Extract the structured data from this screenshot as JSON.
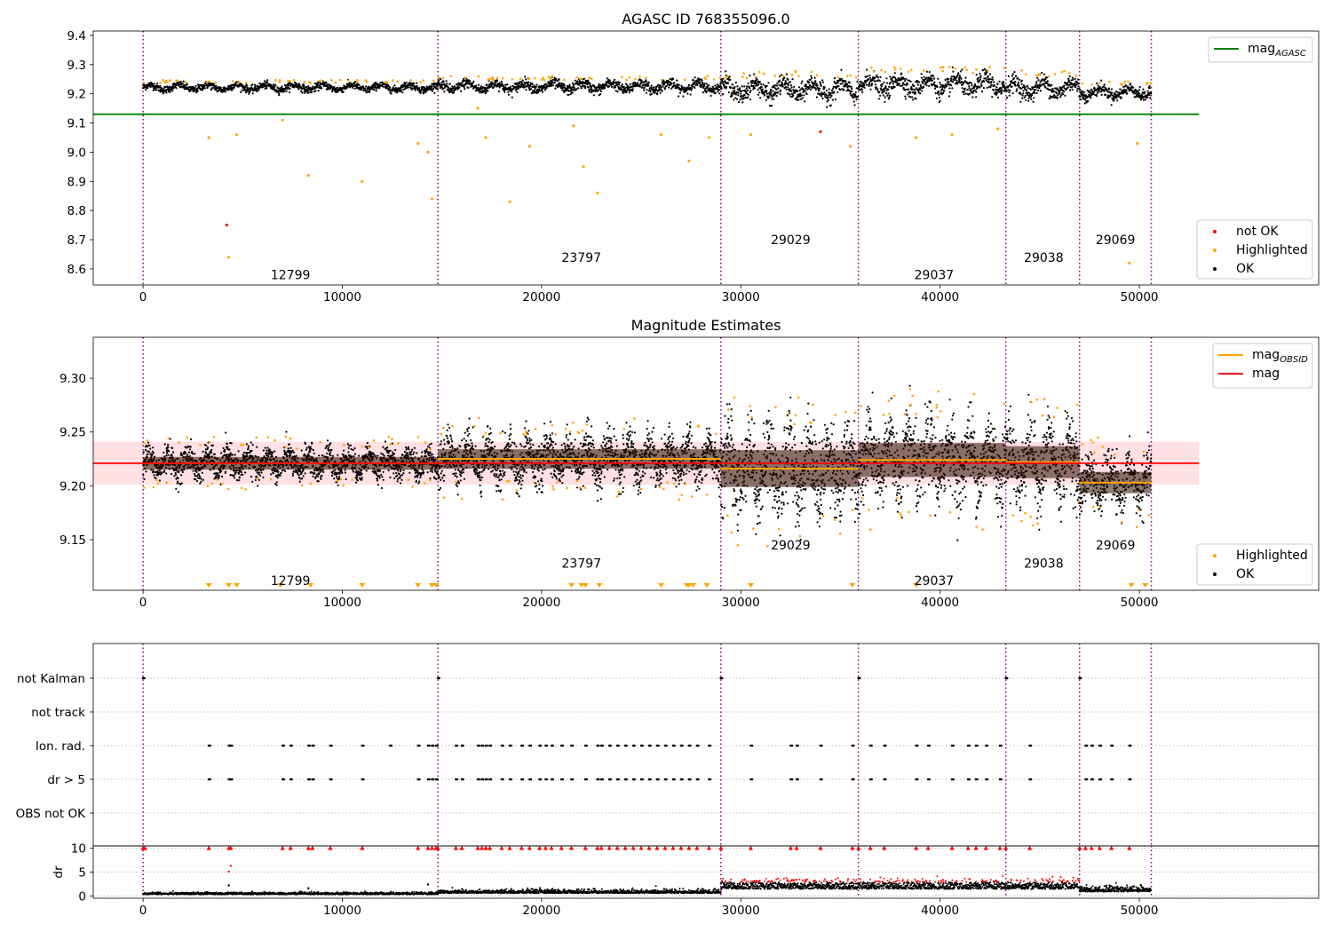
{
  "figure": {
    "obs_boundaries": [
      0,
      14800,
      29000,
      35900,
      43300,
      47000,
      50600
    ],
    "colors": {
      "ok": "#000000",
      "highlighted": "#ffa500",
      "not_ok": "#ff0000",
      "agasc_line": "#008000",
      "mag_line": "#ff0000",
      "obsid_line": "#ffa500",
      "boundary": "#800080",
      "band": "#ffdde0"
    }
  },
  "chart_data": [
    {
      "type": "scatter",
      "title": "AGASC ID 768355096.0",
      "xlabel": "",
      "ylabel": "",
      "xlim": [
        -2500,
        59000
      ],
      "ylim": [
        8.545,
        9.415
      ],
      "xticks": [
        "0",
        "10000",
        "20000",
        "30000",
        "40000",
        "50000"
      ],
      "yticks": [
        "8.6",
        "8.7",
        "8.8",
        "8.9",
        "9.0",
        "9.1",
        "9.2",
        "9.3",
        "9.4"
      ],
      "legend_top": [
        {
          "label": "mag",
          "sub": "AGASC",
          "color": "#008000"
        }
      ],
      "legend_bottom": [
        {
          "label": "not OK",
          "color": "#ff0000"
        },
        {
          "label": "Highlighted",
          "color": "#ffa500"
        },
        {
          "label": "OK",
          "color": "#000000"
        }
      ],
      "mag_agasc": 9.13,
      "obs_labels": [
        {
          "text": "12799",
          "x": 7400,
          "y": 8.58
        },
        {
          "text": "23797",
          "x": 22000,
          "y": 8.64
        },
        {
          "text": "29029",
          "x": 32500,
          "y": 8.7
        },
        {
          "text": "29037",
          "x": 39700,
          "y": 8.58
        },
        {
          "text": "29038",
          "x": 45200,
          "y": 8.64
        },
        {
          "text": "29069",
          "x": 48800,
          "y": 8.7
        }
      ],
      "segments": [
        {
          "x0": 0,
          "x1": 14800,
          "mean": 9.222,
          "spread": 0.014
        },
        {
          "x0": 14800,
          "x1": 29000,
          "mean": 9.225,
          "spread": 0.02
        },
        {
          "x0": 29000,
          "x1": 35900,
          "mean": 9.215,
          "spread": 0.035
        },
        {
          "x0": 35900,
          "x1": 43300,
          "mean": 9.23,
          "spread": 0.036
        },
        {
          "x0": 43300,
          "x1": 47000,
          "mean": 9.22,
          "spread": 0.034
        },
        {
          "x0": 47000,
          "x1": 50600,
          "mean": 9.205,
          "spread": 0.022
        }
      ],
      "outliers": [
        {
          "x": 4200,
          "y": 8.75,
          "status": "not_ok"
        },
        {
          "x": 34000,
          "y": 9.07,
          "status": "not_ok"
        },
        {
          "x": 4300,
          "y": 8.64,
          "status": "highlighted"
        },
        {
          "x": 3300,
          "y": 9.05,
          "status": "highlighted"
        },
        {
          "x": 4700,
          "y": 9.06,
          "status": "highlighted"
        },
        {
          "x": 8300,
          "y": 8.92,
          "status": "highlighted"
        },
        {
          "x": 11000,
          "y": 8.9,
          "status": "highlighted"
        },
        {
          "x": 13800,
          "y": 9.03,
          "status": "highlighted"
        },
        {
          "x": 14300,
          "y": 9.0,
          "status": "highlighted"
        },
        {
          "x": 14500,
          "y": 8.84,
          "status": "highlighted"
        },
        {
          "x": 18400,
          "y": 8.83,
          "status": "highlighted"
        },
        {
          "x": 19400,
          "y": 9.02,
          "status": "highlighted"
        },
        {
          "x": 22100,
          "y": 8.95,
          "status": "highlighted"
        },
        {
          "x": 22800,
          "y": 8.86,
          "status": "highlighted"
        },
        {
          "x": 21600,
          "y": 9.09,
          "status": "highlighted"
        },
        {
          "x": 27400,
          "y": 8.97,
          "status": "highlighted"
        },
        {
          "x": 28400,
          "y": 9.05,
          "status": "highlighted"
        },
        {
          "x": 35500,
          "y": 9.02,
          "status": "highlighted"
        },
        {
          "x": 38800,
          "y": 9.05,
          "status": "highlighted"
        },
        {
          "x": 40600,
          "y": 9.06,
          "status": "highlighted"
        },
        {
          "x": 42900,
          "y": 9.08,
          "status": "highlighted"
        },
        {
          "x": 49500,
          "y": 8.62,
          "status": "highlighted"
        },
        {
          "x": 49900,
          "y": 9.03,
          "status": "highlighted"
        },
        {
          "x": 7000,
          "y": 9.11,
          "status": "highlighted"
        },
        {
          "x": 16800,
          "y": 9.15,
          "status": "highlighted"
        },
        {
          "x": 30500,
          "y": 9.06,
          "status": "highlighted"
        },
        {
          "x": 17200,
          "y": 9.05,
          "status": "highlighted"
        },
        {
          "x": 26000,
          "y": 9.06,
          "status": "highlighted"
        }
      ]
    },
    {
      "type": "scatter",
      "title": "Magnitude Estimates",
      "xlabel": "",
      "ylabel": "",
      "xlim": [
        -2500,
        59000
      ],
      "ylim": [
        9.103,
        9.338
      ],
      "xticks": [
        "0",
        "10000",
        "20000",
        "30000",
        "40000",
        "50000"
      ],
      "yticks": [
        "9.15",
        "9.20",
        "9.25",
        "9.30"
      ],
      "legend_top": [
        {
          "label": "mag",
          "sub": "OBSID",
          "color": "#ffa500"
        },
        {
          "label": "mag",
          "sub": "",
          "color": "#ff0000"
        }
      ],
      "legend_bottom": [
        {
          "label": "Highlighted",
          "color": "#ffa500"
        },
        {
          "label": "OK",
          "color": "#000000"
        }
      ],
      "mag": 9.221,
      "band": [
        9.201,
        9.241
      ],
      "obsid_means": [
        {
          "x0": 0,
          "x1": 14800,
          "mean": 9.221
        },
        {
          "x0": 14800,
          "x1": 29000,
          "mean": 9.225
        },
        {
          "x0": 29000,
          "x1": 35900,
          "mean": 9.216
        },
        {
          "x0": 35900,
          "x1": 43300,
          "mean": 9.224
        },
        {
          "x0": 43300,
          "x1": 47000,
          "mean": 9.222
        },
        {
          "x0": 47000,
          "x1": 50600,
          "mean": 9.203
        }
      ],
      "obs_labels": [
        {
          "text": "12799",
          "x": 7400,
          "y": 9.112
        },
        {
          "text": "23797",
          "x": 22000,
          "y": 9.128
        },
        {
          "text": "29029",
          "x": 32500,
          "y": 9.145
        },
        {
          "text": "29037",
          "x": 39700,
          "y": 9.112
        },
        {
          "text": "29038",
          "x": 45200,
          "y": 9.128
        },
        {
          "text": "29069",
          "x": 48800,
          "y": 9.145
        }
      ],
      "down_markers": [
        3300,
        4300,
        4700,
        6900,
        8400,
        11000,
        13800,
        14500,
        14700,
        21500,
        22000,
        22200,
        22900,
        26000,
        27300,
        27400,
        27600,
        28300,
        30500,
        35600,
        38800,
        49600,
        50300
      ]
    },
    {
      "type": "scatter",
      "title": "",
      "xlabel": "",
      "ylabel": "",
      "xlim": [
        -2500,
        59000
      ],
      "categories": [
        "not Kalman",
        "not track",
        "Ion. rad.",
        "dr > 5",
        "OBS not OK"
      ],
      "flag_events": [
        {
          "category": "not Kalman",
          "x": [
            0,
            14800,
            29000,
            35900,
            43300,
            47000
          ]
        },
        {
          "category": "not track",
          "x": []
        },
        {
          "category": "Ion. rad.",
          "x": [
            3300,
            4300,
            4400,
            7000,
            7400,
            8300,
            8500,
            9400,
            11000,
            12400,
            13800,
            14300,
            14500,
            14700,
            15700,
            16000,
            16800,
            17000,
            17200,
            17400,
            18000,
            18400,
            19000,
            19400,
            19900,
            20200,
            20500,
            21000,
            21500,
            22200,
            22800,
            23000,
            23400,
            23800,
            24200,
            24600,
            25000,
            25400,
            25800,
            26200,
            26600,
            27000,
            27400,
            27800,
            28400,
            30500,
            32500,
            32800,
            34000,
            35600,
            36500,
            37200,
            38800,
            39400,
            40600,
            41400,
            41800,
            42300,
            43000,
            44500,
            47300,
            47600,
            48000,
            48600,
            49500
          ]
        },
        {
          "category": "dr > 5",
          "x": [
            3300,
            4300,
            4400,
            7000,
            7400,
            8300,
            8500,
            9400,
            11000,
            13800,
            14300,
            14500,
            14700,
            15700,
            16000,
            16800,
            17000,
            17200,
            17400,
            18000,
            18400,
            19000,
            19400,
            19900,
            20200,
            20500,
            21000,
            21500,
            22200,
            22800,
            23000,
            23400,
            23800,
            24200,
            24600,
            25000,
            25400,
            25800,
            26200,
            26600,
            27000,
            27400,
            27800,
            28400,
            30500,
            32500,
            32800,
            34000,
            35600,
            36500,
            37200,
            38800,
            39400,
            40600,
            41400,
            41800,
            42300,
            43000,
            44500,
            47300,
            47600,
            48000,
            48600,
            49500
          ]
        },
        {
          "category": "OBS not OK",
          "x": []
        }
      ]
    },
    {
      "type": "scatter",
      "title": "",
      "xlabel": "",
      "ylabel": "dr",
      "xlim": [
        -2500,
        59000
      ],
      "ylim": [
        -0.5,
        10.5
      ],
      "xticks": [
        "0",
        "10000",
        "20000",
        "30000",
        "40000",
        "50000"
      ],
      "yticks": [
        "0",
        "5",
        "10"
      ],
      "segments": [
        {
          "x0": 0,
          "x1": 14800,
          "mean": 0.4
        },
        {
          "x0": 14800,
          "x1": 29000,
          "mean": 0.7
        },
        {
          "x0": 29000,
          "x1": 35900,
          "mean": 1.8
        },
        {
          "x0": 35900,
          "x1": 43300,
          "mean": 1.8
        },
        {
          "x0": 43300,
          "x1": 47000,
          "mean": 1.8
        },
        {
          "x0": 47000,
          "x1": 50600,
          "mean": 1.1
        }
      ],
      "clipped_x": [
        0,
        100,
        3300,
        4300,
        4400,
        7000,
        7400,
        8300,
        8500,
        9400,
        11000,
        13800,
        14300,
        14500,
        14700,
        14800,
        15700,
        16000,
        16800,
        17000,
        17200,
        17400,
        18000,
        18400,
        19000,
        19400,
        19900,
        20200,
        20500,
        21000,
        21500,
        22200,
        22800,
        23000,
        23400,
        23800,
        24200,
        24600,
        25000,
        25400,
        25800,
        26200,
        26600,
        27000,
        27400,
        27800,
        28400,
        29000,
        30500,
        32500,
        32800,
        34000,
        35600,
        35900,
        36500,
        37200,
        38800,
        39400,
        40600,
        41400,
        41800,
        42300,
        43000,
        43300,
        44500,
        47000,
        47300,
        47600,
        48000,
        48600,
        49500
      ],
      "stray_points": [
        {
          "x": 4300,
          "y": 5.1
        },
        {
          "x": 4400,
          "y": 6.3
        },
        {
          "x": 4300,
          "y": 2.2
        },
        {
          "x": 8300,
          "y": 1.6
        },
        {
          "x": 14300,
          "y": 2.4
        }
      ]
    }
  ]
}
